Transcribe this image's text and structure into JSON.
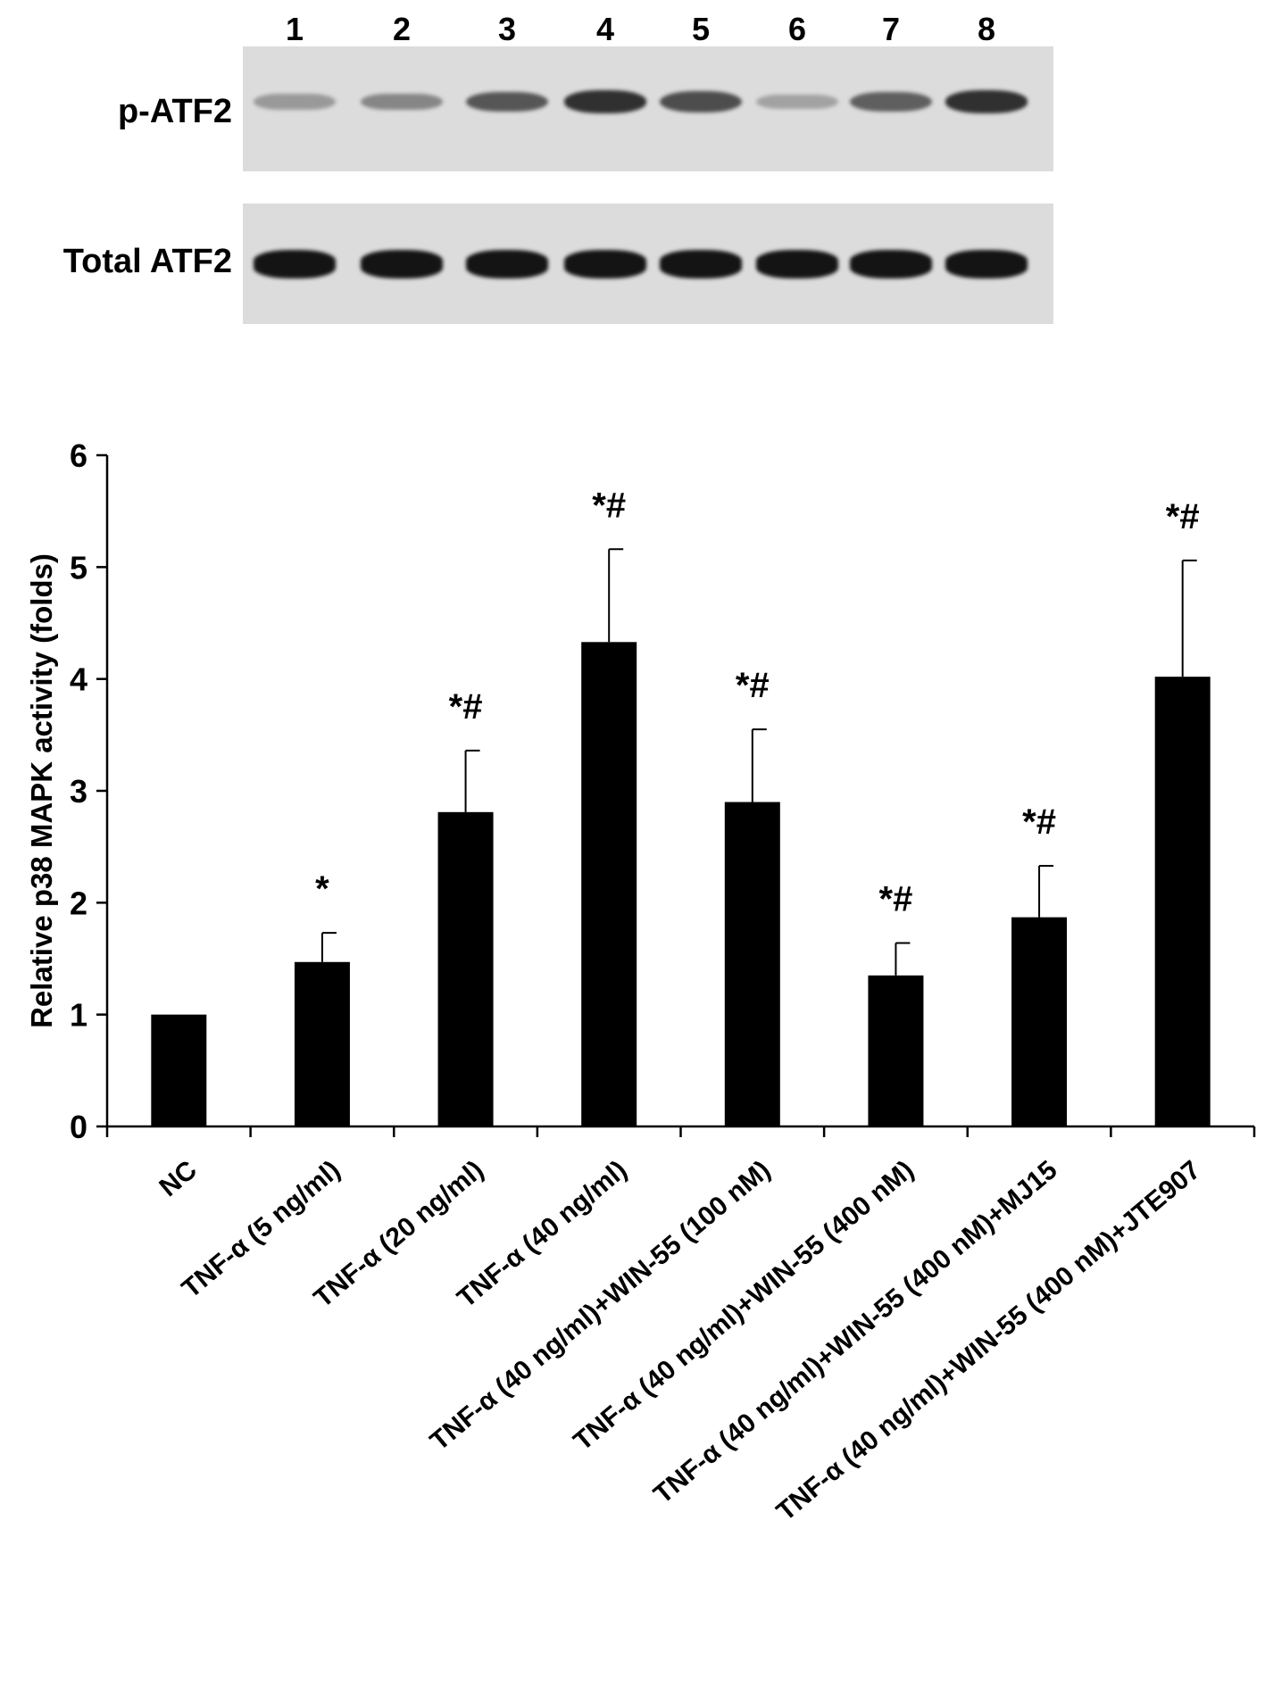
{
  "blot": {
    "lanes": [
      "1",
      "2",
      "3",
      "4",
      "5",
      "6",
      "7",
      "8"
    ],
    "rows": [
      {
        "label": "p-ATF2",
        "intensities": [
          0.25,
          0.35,
          0.6,
          0.8,
          0.65,
          0.2,
          0.55,
          0.8
        ]
      },
      {
        "label": "Total ATF2",
        "intensities": [
          0.95,
          0.95,
          0.95,
          0.95,
          0.95,
          0.95,
          0.95,
          0.95
        ]
      }
    ]
  },
  "chart_data": {
    "type": "bar",
    "ylabel": "Relative p38 MAPK activity (folds)",
    "xlabel": "",
    "ylim": [
      0,
      6
    ],
    "yticks": [
      "0",
      "1",
      "2",
      "3",
      "4",
      "5",
      "6"
    ],
    "categories": [
      "NC",
      "TNF-α (5 ng/ml)",
      "TNF-α (20 ng/ml)",
      "TNF-α (40 ng/ml)",
      "TNF-α (40 ng/ml)+WIN-55 (100 nM)",
      "TNF-α (40 ng/ml)+WIN-55 (400 nM)",
      "TNF-α (40 ng/ml)+WIN-55 (400 nM)+MJ15",
      "TNF-α (40 ng/ml)+WIN-55 (400 nM)+JTE907"
    ],
    "values": [
      1.0,
      1.47,
      2.81,
      4.33,
      2.9,
      1.35,
      1.87,
      4.02
    ],
    "errors": [
      0,
      0.26,
      0.55,
      0.83,
      0.65,
      0.29,
      0.46,
      1.04
    ],
    "annotations": [
      "",
      "*",
      "*#",
      "*#",
      "*#",
      "*#",
      "*#",
      "*#"
    ],
    "bar_color": "#000000"
  }
}
